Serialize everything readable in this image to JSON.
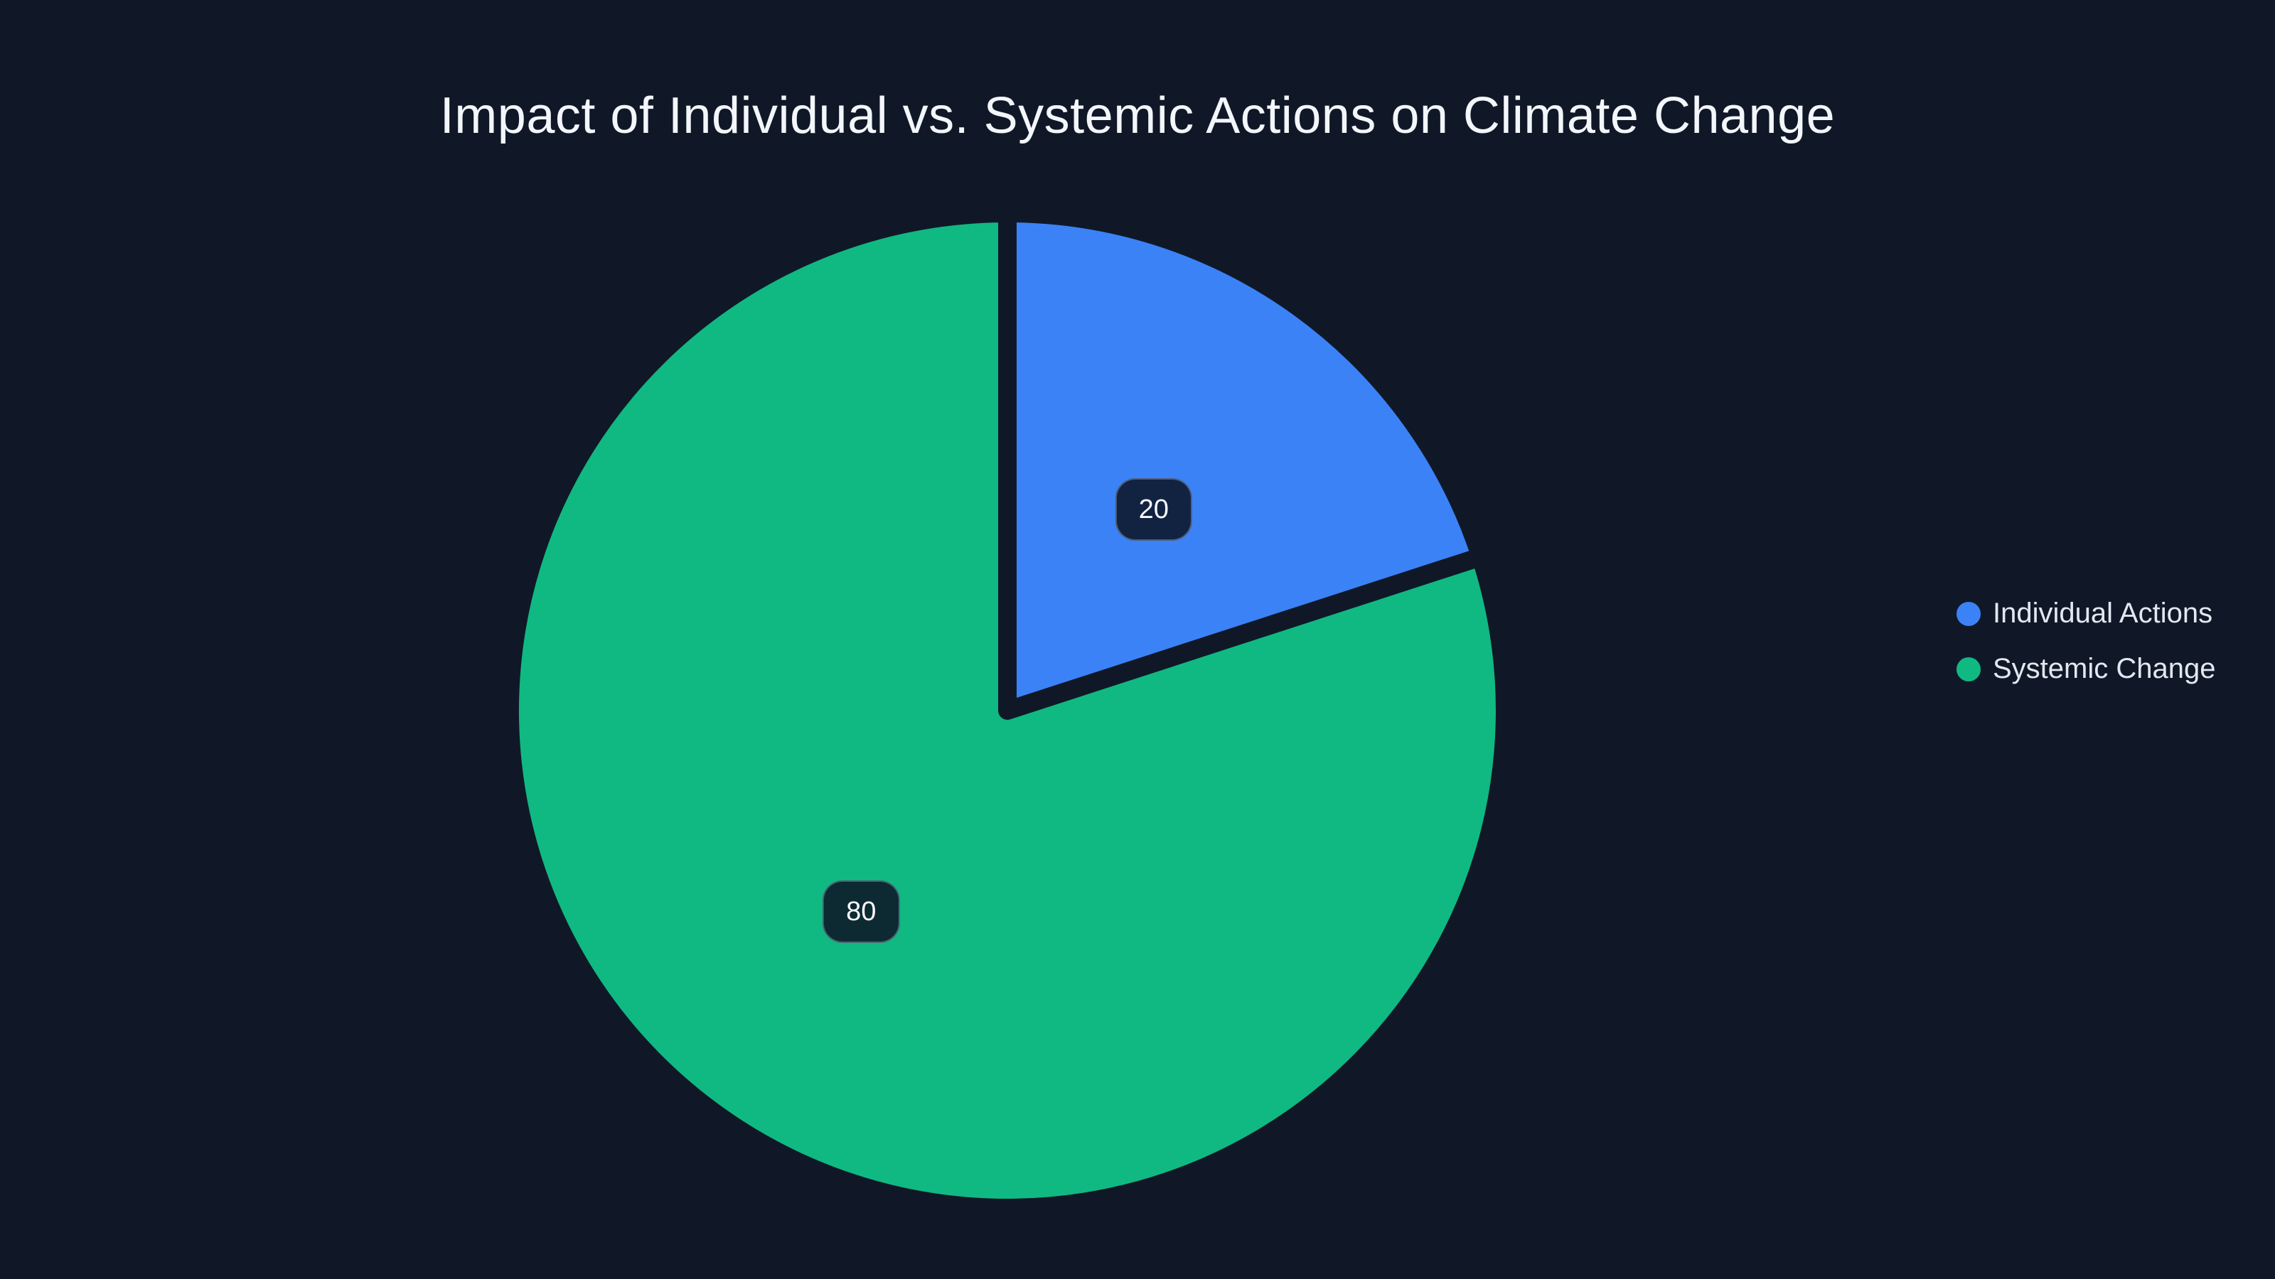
{
  "page": {
    "title": "Impact of Individual vs. Systemic Actions on Climate Change"
  },
  "colors": {
    "background": "#101828",
    "title_text": "#F3F6FA",
    "legend_text": "#E2E8F0",
    "badge_text": "#F8FAFC",
    "badge_background": "rgba(13,22,40,0.88)",
    "badge_border": "rgba(148,163,184,0.45)",
    "individual_actions": "#3B82F6",
    "systemic_change": "#10B981"
  },
  "legend": {
    "position": "center-right",
    "items": [
      {
        "label": "Individual Actions",
        "color": "#3B82F6",
        "marker": "circle"
      },
      {
        "label": "Systemic Change",
        "color": "#10B981",
        "marker": "circle"
      }
    ]
  },
  "chart_data": {
    "type": "pie",
    "title": "Impact of Individual vs. Systemic Actions on Climate Change",
    "categories": [
      "Individual Actions",
      "Systemic Change"
    ],
    "values": [
      20,
      80
    ],
    "colors": [
      "#3B82F6",
      "#10B981"
    ],
    "data_labels": [
      "20",
      "80"
    ],
    "start_angle_deg": 0,
    "direction": "clockwise",
    "slice_separator": "background-colored stroke",
    "legend_position": "center-right",
    "hole": 0
  }
}
